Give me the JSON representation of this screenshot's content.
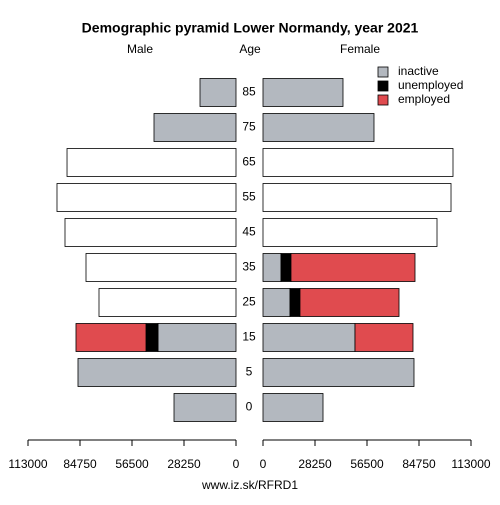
{
  "chart_data": {
    "type": "bar",
    "title": "Demographic pyramid Lower Normandy, year 2021",
    "y_label": "Age",
    "footer": "www.iz.sk/RFRD1",
    "categories": [
      "0",
      "5",
      "15",
      "25",
      "35",
      "45",
      "55",
      "65",
      "75",
      "85"
    ],
    "xlim": [
      0,
      113000
    ],
    "xticks": [
      0,
      28250,
      56500,
      84750,
      113000
    ],
    "panels": [
      {
        "label": "Male",
        "series": [
          {
            "name": "inactive",
            "color": "#b3b8bf",
            "values": [
              33680,
              85840,
              42380,
              null,
              null,
              null,
              null,
              null,
              44550,
              19560
            ]
          },
          {
            "name": "unemployed",
            "color": "#000000",
            "values": [
              null,
              null,
              6520,
              null,
              null,
              null,
              null,
              null,
              null,
              null
            ]
          },
          {
            "name": "employed",
            "color": "#e04b4f",
            "values": [
              null,
              null,
              38030,
              null,
              null,
              null,
              null,
              null,
              null,
              null
            ]
          },
          {
            "color": "#ffffff",
            "values": [
              null,
              null,
              null,
              74430,
              81490,
              92900,
              97250,
              91800,
              null,
              null
            ]
          }
        ]
      },
      {
        "label": "Female",
        "series": [
          {
            "name": "inactive",
            "color": "#b3b8bf",
            "values": [
              32600,
              82030,
              49980,
              14670,
              9780,
              null,
              null,
              null,
              60300,
              43460
            ]
          },
          {
            "name": "unemployed",
            "color": "#000000",
            "values": [
              null,
              null,
              null,
              5430,
              5430,
              null,
              null,
              null,
              null,
              null
            ]
          },
          {
            "name": "employed",
            "color": "#e04b4f",
            "values": [
              null,
              null,
              31510,
              53790,
              67370,
              null,
              null,
              null,
              null,
              null
            ]
          },
          {
            "color": "#ffffff",
            "values": [
              null,
              null,
              null,
              null,
              null,
              94530,
              102140,
              103220,
              null,
              null
            ]
          }
        ]
      }
    ]
  }
}
